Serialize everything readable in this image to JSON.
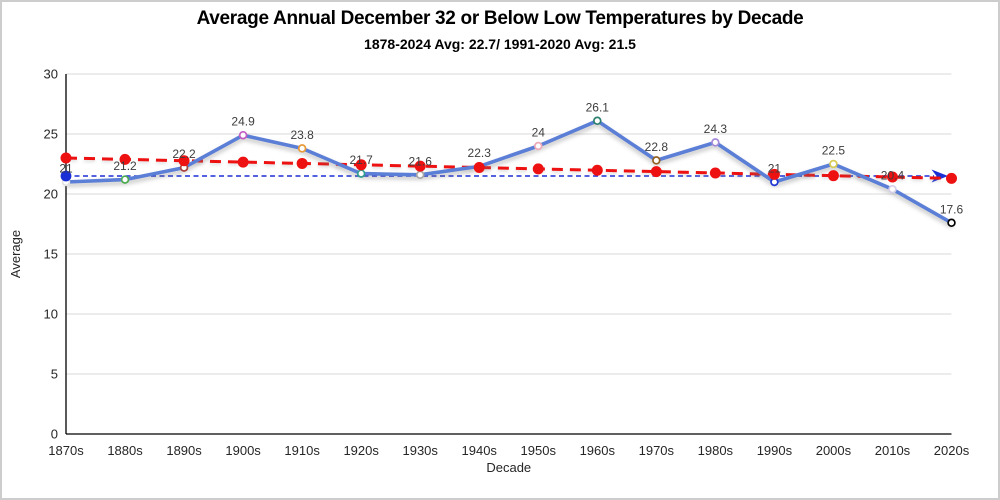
{
  "chart_data": {
    "type": "line",
    "title": "Average Annual December 32 or Below Low Temperatures by Decade",
    "subtitle": "1878-2024 Avg: 22.7/ 1991-2020 Avg: 21.5",
    "xlabel": "Decade",
    "ylabel": "Average",
    "ylim": [
      0,
      30
    ],
    "yticks": [
      0,
      5,
      10,
      15,
      20,
      25,
      30
    ],
    "grid": true,
    "legend": "none",
    "categories": [
      "1870s",
      "1880s",
      "1890s",
      "1900s",
      "1910s",
      "1920s",
      "1930s",
      "1940s",
      "1950s",
      "1960s",
      "1970s",
      "1980s",
      "1990s",
      "2000s",
      "2010s",
      "2020s"
    ],
    "values": [
      21,
      21.2,
      22.2,
      24.9,
      23.8,
      21.7,
      21.6,
      22.3,
      24,
      26.1,
      22.8,
      24.3,
      21,
      22.5,
      20.4,
      17.6
    ],
    "data_labels": [
      "21",
      "21.2",
      "22.2",
      "24.9",
      "23.8",
      "21.7",
      "21.6",
      "22.3",
      "24",
      "26.1",
      "22.8",
      "24.3",
      "21",
      "22.5",
      "20.4",
      "17.6"
    ],
    "marker_colors": [
      "#e2e2e2",
      "#4cab50",
      "#a8423e",
      "#c25fc2",
      "#e79a35",
      "#319e8f",
      "#a6a6a6",
      "#ee1111",
      "#edaab7",
      "#2b7f6e",
      "#92601f",
      "#a38ad8",
      "#2036d4",
      "#d8cc55",
      "#d5cfe9",
      "#000000"
    ],
    "trendline": {
      "style": "dashed",
      "color": "#ee1111",
      "start_value": 23.0,
      "end_value": 21.3,
      "dot_at_each_category": true
    },
    "reference_line": {
      "style": "dashed",
      "color": "#1b2fd6",
      "value": 21.5,
      "start_dot": true,
      "end_arrow": true
    },
    "colors": {
      "line": "#5b7ed6",
      "grid": "#d9d9d9",
      "axis": "#000000",
      "tick_text": "#262626",
      "data_label_text": "#3d3d3d"
    }
  }
}
